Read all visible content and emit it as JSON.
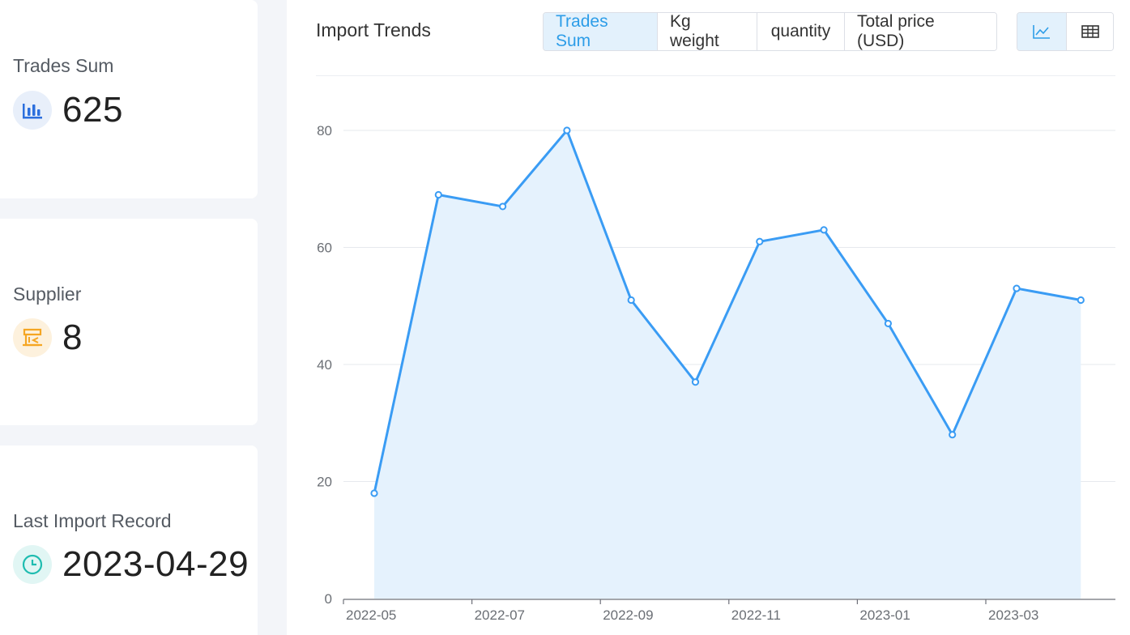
{
  "stats": [
    {
      "label": "Trades Sum",
      "value": "625",
      "icon": "bar-chart-icon",
      "color": "#2c6fdd",
      "bg": "#e8effa"
    },
    {
      "label": "Supplier",
      "value": "8",
      "icon": "store-icon",
      "color": "#f5a623",
      "bg": "#fdf1dd"
    },
    {
      "label": "Last Import Record",
      "value": "2023-04-29",
      "icon": "clock-icon",
      "color": "#1fbcb0",
      "bg": "#e1f6f4"
    }
  ],
  "panel": {
    "title": "Import Trends",
    "tabs": [
      {
        "label": "Trades Sum",
        "active": true
      },
      {
        "label": "Kg weight",
        "active": false
      },
      {
        "label": "quantity",
        "active": false
      },
      {
        "label": "Total price (USD)",
        "active": false
      }
    ],
    "views": [
      {
        "icon": "line-chart-icon",
        "active": true
      },
      {
        "icon": "table-icon",
        "active": false
      }
    ]
  },
  "chart_data": {
    "type": "line",
    "x": [
      "2022-05",
      "2022-06",
      "2022-07",
      "2022-08",
      "2022-09",
      "2022-10",
      "2022-11",
      "2022-12",
      "2023-01",
      "2023-02",
      "2023-03",
      "2023-04"
    ],
    "x_tick_labels": [
      "2022-05",
      "2022-07",
      "2022-09",
      "2022-11",
      "2023-01",
      "2023-03"
    ],
    "values": [
      18,
      69,
      67,
      80,
      51,
      37,
      61,
      63,
      47,
      28,
      53,
      51
    ],
    "ylim": [
      0,
      80
    ],
    "y_ticks": [
      0,
      20,
      40,
      60,
      80
    ],
    "grid": true,
    "area_fill": true,
    "line_color": "#3a9cf4",
    "fill_color": "#e5f2fd"
  }
}
